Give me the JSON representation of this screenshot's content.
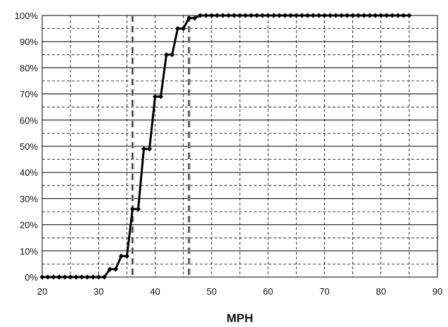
{
  "chart_data": {
    "type": "line",
    "title": "",
    "xlabel": "MPH",
    "ylabel": "",
    "xlim": [
      20,
      90
    ],
    "ylim": [
      0,
      100
    ],
    "x_ticks": [
      20,
      30,
      40,
      50,
      60,
      70,
      80,
      90
    ],
    "y_ticks": [
      "0%",
      "10%",
      "20%",
      "30%",
      "40%",
      "50%",
      "60%",
      "70%",
      "80%",
      "90%",
      "100%"
    ],
    "grid": true,
    "legend": "none",
    "line_color": "#000000",
    "reference_lines_x": [
      36,
      46
    ],
    "series": [
      {
        "x": [
          20,
          21,
          22,
          23,
          24,
          25,
          26,
          27,
          28,
          29,
          30,
          31,
          32,
          33,
          34,
          35,
          36,
          37,
          38,
          39,
          40,
          41,
          42,
          43,
          44,
          45,
          46,
          47,
          48,
          49,
          50,
          51,
          52,
          53,
          54,
          55,
          56,
          57,
          58,
          59,
          60,
          61,
          62,
          63,
          64,
          65,
          66,
          67,
          68,
          69,
          70,
          71,
          72,
          73,
          74,
          75,
          76,
          77,
          78,
          79,
          80,
          81,
          82,
          83,
          84,
          85
        ],
        "y": [
          0,
          0,
          0,
          0,
          0,
          0,
          0,
          0,
          0,
          0,
          0,
          0,
          3,
          3,
          8,
          8,
          26,
          26,
          49,
          49,
          69,
          69,
          85,
          85,
          95,
          95,
          99,
          99,
          100,
          100,
          100,
          100,
          100,
          100,
          100,
          100,
          100,
          100,
          100,
          100,
          100,
          100,
          100,
          100,
          100,
          100,
          100,
          100,
          100,
          100,
          100,
          100,
          100,
          100,
          100,
          100,
          100,
          100,
          100,
          100,
          100,
          100,
          100,
          100,
          100,
          100
        ]
      }
    ]
  }
}
